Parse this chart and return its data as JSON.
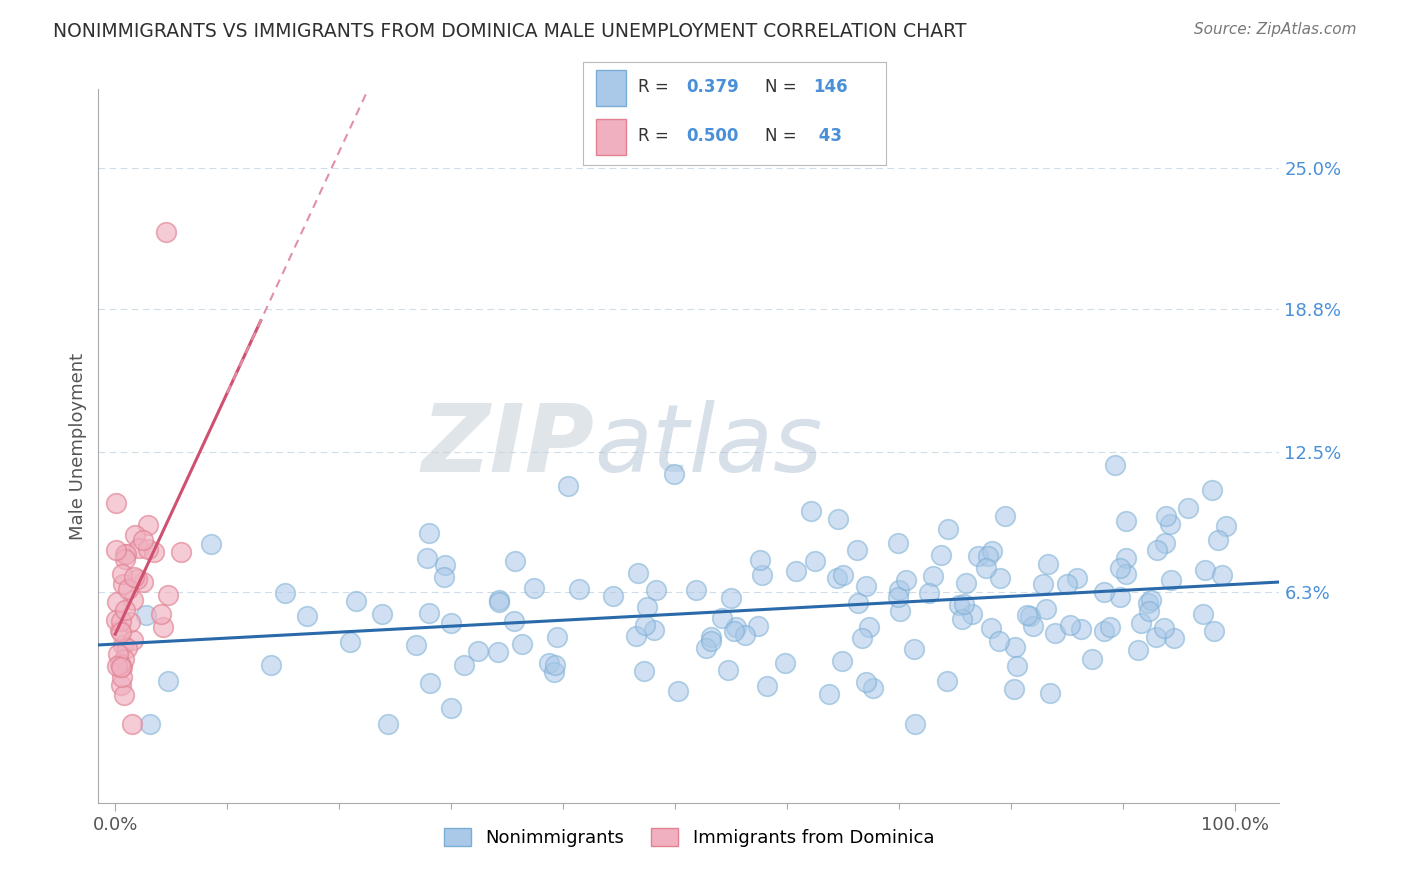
{
  "title": "NONIMMIGRANTS VS IMMIGRANTS FROM DOMINICA MALE UNEMPLOYMENT CORRELATION CHART",
  "source": "Source: ZipAtlas.com",
  "ylabel": "Male Unemployment",
  "legend1_label": "Nonimmigrants",
  "legend2_label": "Immigrants from Dominica",
  "R1": 0.379,
  "N1": 146,
  "R2": 0.5,
  "N2": 43,
  "y_ticks": [
    0.063,
    0.125,
    0.188,
    0.25
  ],
  "y_tick_labels": [
    "6.3%",
    "12.5%",
    "18.8%",
    "25.0%"
  ],
  "y_min": -0.03,
  "y_max": 0.285,
  "x_min": -0.015,
  "x_max": 1.04,
  "blue_face_color": "#aac8e8",
  "blue_edge_color": "#7aaed4",
  "pink_face_color": "#f0b0c0",
  "pink_edge_color": "#e08090",
  "blue_line_color": "#2a6aaa",
  "pink_line_color": "#d05070",
  "pink_dash_color": "#e090a8",
  "grid_color": "#d0dce8",
  "title_color": "#303030",
  "axis_label_color": "#555555",
  "right_label_color": "#4a90d9",
  "legend_box_color": "#cccccc",
  "legend_R_N_color": "#4a90d9"
}
